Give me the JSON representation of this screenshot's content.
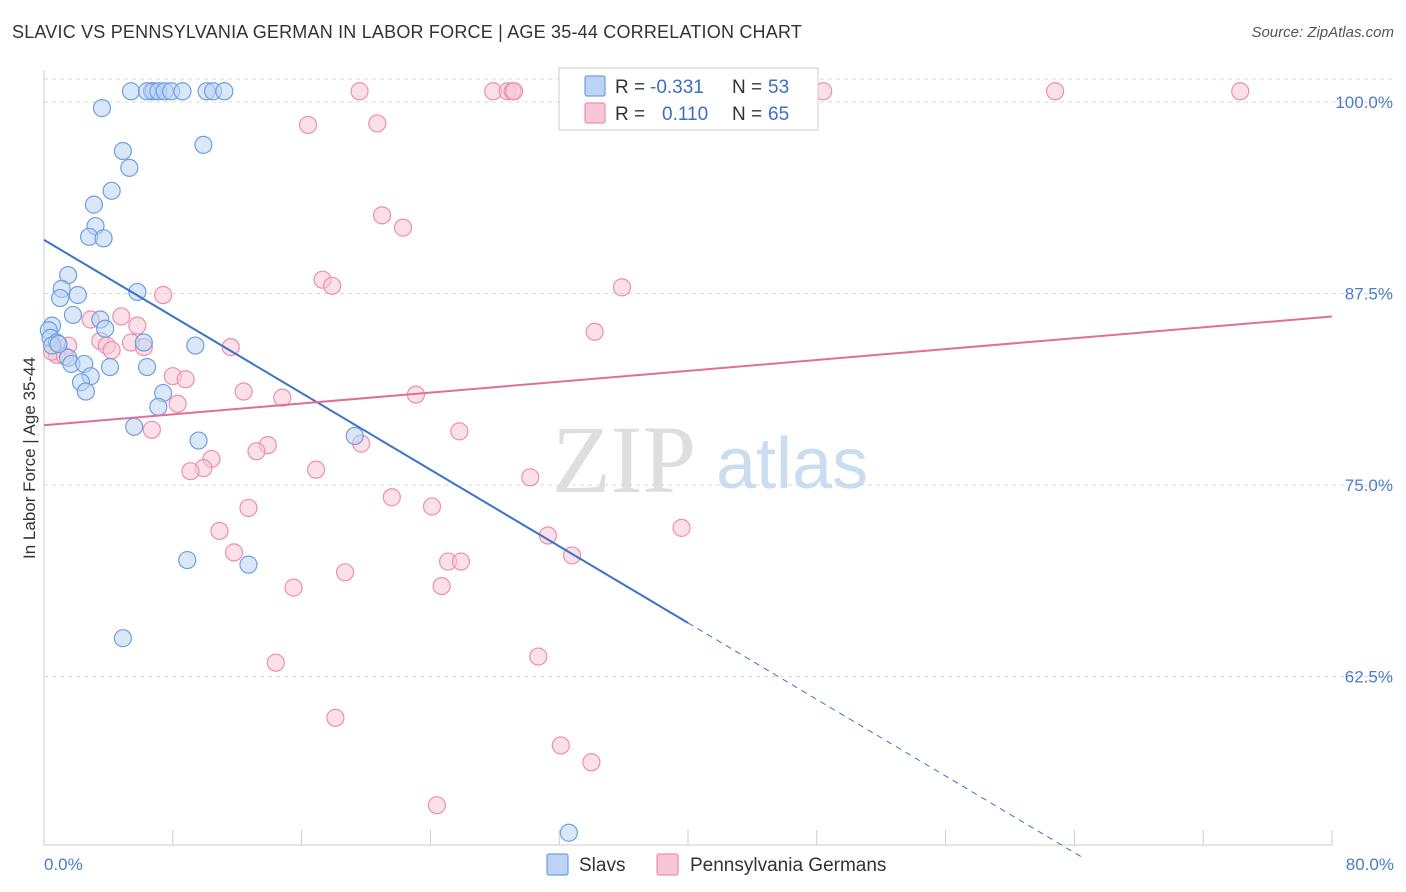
{
  "chart_data": {
    "type": "scatter",
    "title": "SLAVIC VS PENNSYLVANIA GERMAN IN LABOR FORCE | AGE 35-44 CORRELATION CHART",
    "source": "Source: ZipAtlas.com",
    "xlabel": "",
    "ylabel": "In Labor Force | Age 35-44",
    "xlim": [
      0,
      80
    ],
    "ylim": [
      51.5,
      101.5
    ],
    "x_tick_labels": [
      "0.0%",
      "80.0%"
    ],
    "y_ticks": [
      62.5,
      75.0,
      87.5,
      100.0
    ],
    "y_tick_labels": [
      "62.5%",
      "75.0%",
      "87.5%",
      "100.0%"
    ],
    "grid": "horizontal dashed",
    "watermark": {
      "zip": "ZIP",
      "atlas": "atlas"
    },
    "legend": {
      "position": "top-center",
      "rows": [
        {
          "r_label": "R =",
          "r_value": "-0.331",
          "n_label": "N =",
          "n_value": "53"
        },
        {
          "r_label": "R =",
          "r_value": "0.110",
          "n_label": "N =",
          "n_value": "65"
        }
      ]
    },
    "series": [
      {
        "name": "Slavs",
        "color": "#6f9fe0",
        "fill": "#bcd3f3",
        "line_color": "#3a74c9",
        "trend": {
          "x0": 0,
          "y0": 91.0,
          "x1": 40,
          "y1": 66.0,
          "x_dashed_end": 64.5
        },
        "points": [
          [
            5.4,
            100.7
          ],
          [
            6.7,
            100.7
          ],
          [
            6.8,
            100.7
          ],
          [
            6.4,
            100.7
          ],
          [
            7.1,
            100.7
          ],
          [
            7.5,
            100.7
          ],
          [
            10.1,
            100.7
          ],
          [
            10.5,
            100.7
          ],
          [
            11.2,
            100.7
          ],
          [
            7.9,
            100.7
          ],
          [
            8.6,
            100.7
          ],
          [
            3.6,
            99.6
          ],
          [
            9.9,
            97.2
          ],
          [
            4.9,
            96.8
          ],
          [
            5.3,
            95.7
          ],
          [
            4.2,
            94.2
          ],
          [
            3.1,
            93.3
          ],
          [
            3.2,
            91.9
          ],
          [
            2.8,
            91.2
          ],
          [
            3.7,
            91.1
          ],
          [
            1.5,
            88.7
          ],
          [
            1.1,
            87.8
          ],
          [
            2.1,
            87.4
          ],
          [
            5.8,
            87.6
          ],
          [
            1.0,
            87.2
          ],
          [
            1.8,
            86.1
          ],
          [
            3.5,
            85.8
          ],
          [
            0.5,
            85.4
          ],
          [
            3.8,
            85.2
          ],
          [
            0.3,
            85.1
          ],
          [
            0.4,
            84.6
          ],
          [
            0.8,
            84.3
          ],
          [
            0.5,
            84.1
          ],
          [
            6.2,
            84.3
          ],
          [
            9.4,
            84.1
          ],
          [
            1.5,
            83.3
          ],
          [
            1.7,
            82.9
          ],
          [
            2.5,
            82.9
          ],
          [
            4.1,
            82.7
          ],
          [
            6.4,
            82.7
          ],
          [
            2.9,
            82.1
          ],
          [
            2.3,
            81.7
          ],
          [
            2.6,
            81.1
          ],
          [
            7.4,
            81.0
          ],
          [
            7.1,
            80.1
          ],
          [
            5.6,
            78.8
          ],
          [
            9.6,
            77.9
          ],
          [
            19.3,
            78.2
          ],
          [
            8.9,
            70.1
          ],
          [
            12.7,
            69.8
          ],
          [
            4.9,
            65.0
          ],
          [
            32.6,
            52.3
          ],
          [
            0.9,
            84.2
          ]
        ]
      },
      {
        "name": "Pennsylvania Germans",
        "color": "#ec8fb0",
        "fill": "#f8c6d6",
        "line_color": "#e06f96",
        "trend": {
          "x0": 0,
          "y0": 78.9,
          "x1": 80,
          "y1": 86.0
        },
        "points": [
          [
            19.6,
            100.7
          ],
          [
            27.9,
            100.7
          ],
          [
            28.8,
            100.7
          ],
          [
            29.1,
            100.7
          ],
          [
            29.2,
            100.7
          ],
          [
            48.4,
            100.7
          ],
          [
            62.8,
            100.7
          ],
          [
            74.3,
            100.7
          ],
          [
            16.4,
            98.5
          ],
          [
            20.7,
            98.6
          ],
          [
            21.0,
            92.6
          ],
          [
            22.3,
            91.8
          ],
          [
            17.3,
            88.4
          ],
          [
            17.9,
            88.0
          ],
          [
            35.9,
            87.9
          ],
          [
            7.4,
            87.4
          ],
          [
            4.8,
            86.0
          ],
          [
            2.9,
            85.8
          ],
          [
            5.8,
            85.4
          ],
          [
            34.2,
            85.0
          ],
          [
            3.5,
            84.4
          ],
          [
            5.4,
            84.3
          ],
          [
            3.9,
            84.1
          ],
          [
            1.5,
            84.1
          ],
          [
            6.2,
            84.0
          ],
          [
            11.6,
            84.0
          ],
          [
            4.2,
            83.8
          ],
          [
            0.8,
            83.5
          ],
          [
            0.5,
            83.7
          ],
          [
            1.3,
            83.4
          ],
          [
            8.0,
            82.1
          ],
          [
            8.8,
            81.9
          ],
          [
            12.4,
            81.1
          ],
          [
            14.8,
            80.7
          ],
          [
            23.1,
            80.9
          ],
          [
            8.3,
            80.3
          ],
          [
            6.7,
            78.6
          ],
          [
            25.8,
            78.5
          ],
          [
            19.7,
            77.7
          ],
          [
            13.9,
            77.6
          ],
          [
            13.2,
            77.2
          ],
          [
            10.4,
            76.7
          ],
          [
            9.9,
            76.1
          ],
          [
            9.1,
            75.9
          ],
          [
            16.9,
            76.0
          ],
          [
            30.2,
            75.5
          ],
          [
            21.6,
            74.2
          ],
          [
            24.1,
            73.6
          ],
          [
            12.7,
            73.5
          ],
          [
            31.3,
            71.7
          ],
          [
            39.6,
            72.2
          ],
          [
            10.9,
            72.0
          ],
          [
            11.8,
            70.6
          ],
          [
            25.1,
            70.0
          ],
          [
            25.9,
            70.0
          ],
          [
            32.8,
            70.4
          ],
          [
            18.7,
            69.3
          ],
          [
            24.7,
            68.4
          ],
          [
            15.5,
            68.3
          ],
          [
            14.4,
            63.4
          ],
          [
            30.7,
            63.8
          ],
          [
            18.1,
            59.8
          ],
          [
            32.1,
            58.0
          ],
          [
            34.0,
            56.9
          ],
          [
            24.4,
            54.1
          ]
        ]
      }
    ]
  },
  "bottom_legend": [
    {
      "label": "Slavs"
    },
    {
      "label": "Pennsylvania Germans"
    }
  ]
}
